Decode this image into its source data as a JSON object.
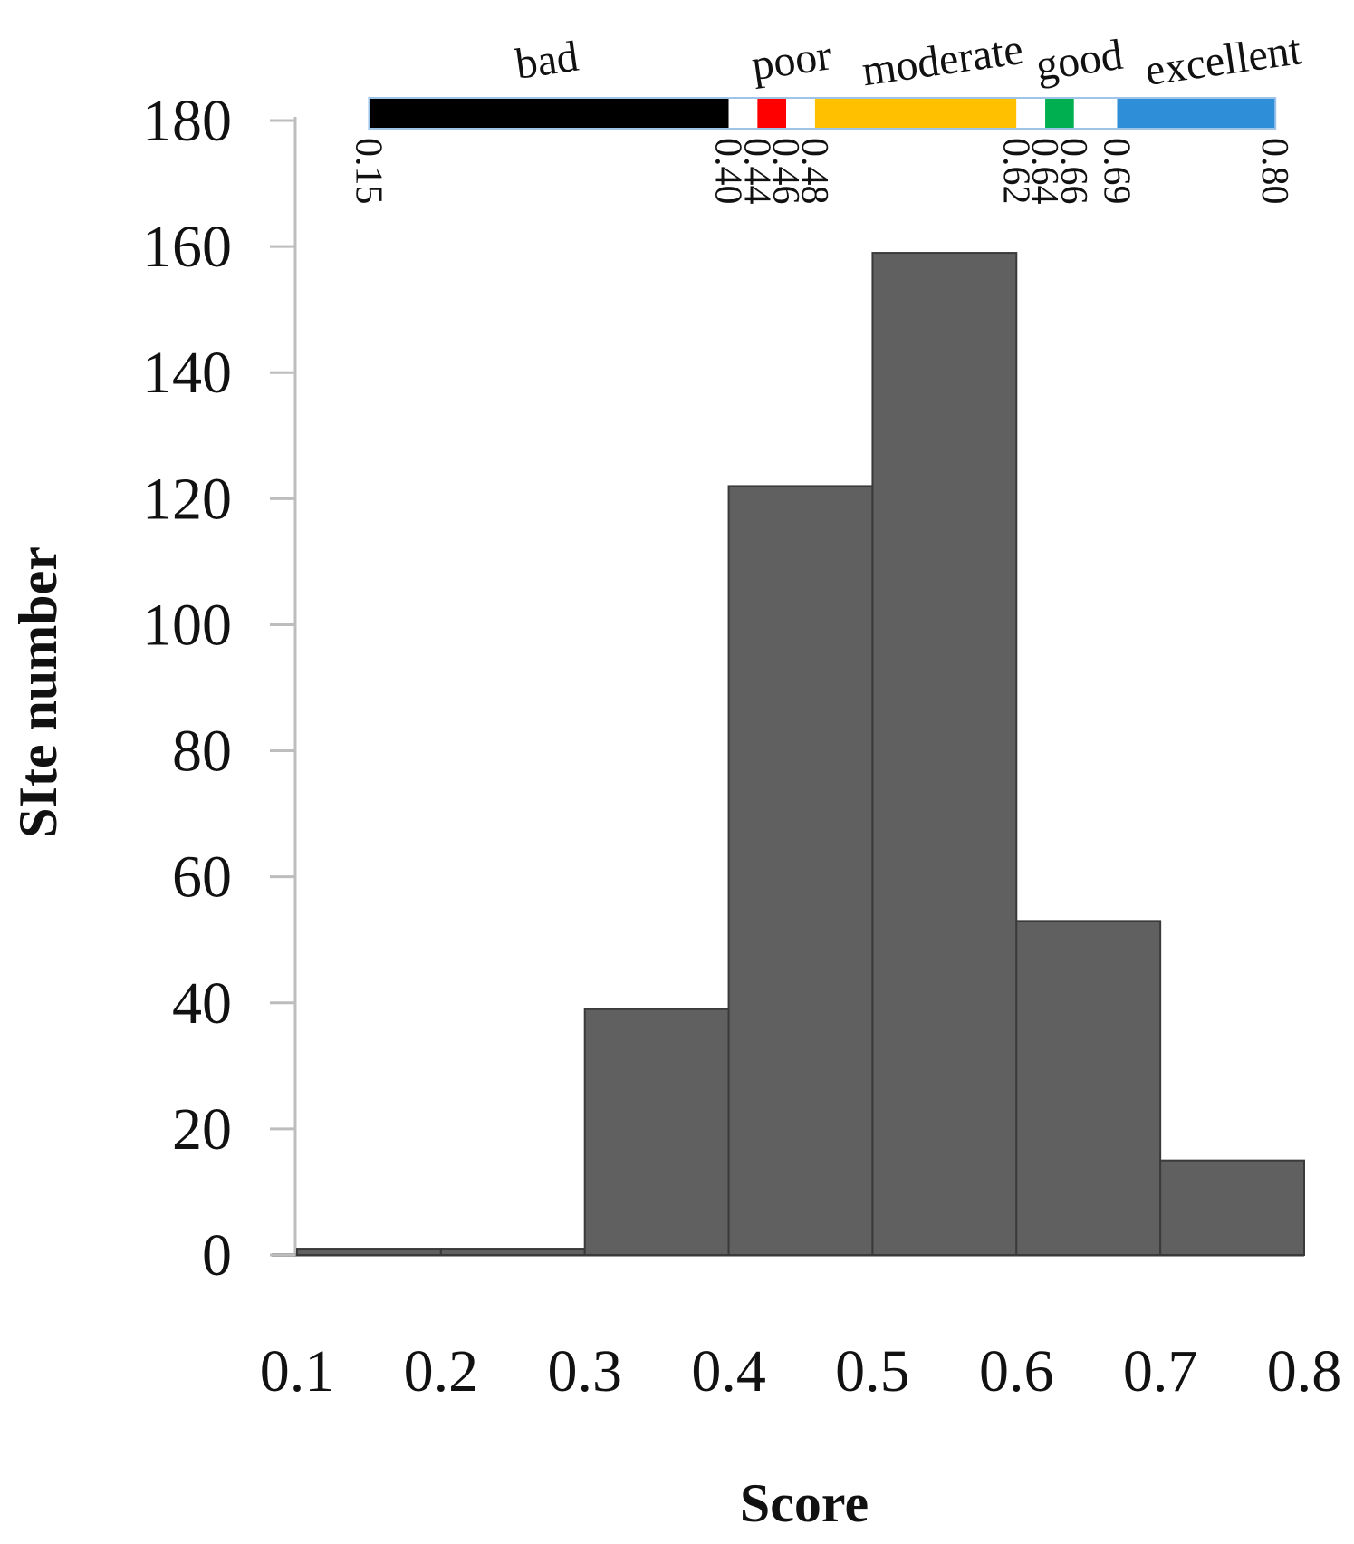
{
  "chart_data": {
    "type": "bar",
    "title": "",
    "xlabel": "Score",
    "ylabel": "SIte number",
    "x_ticks": [
      "0.1",
      "0.2",
      "0.3",
      "0.4",
      "0.5",
      "0.6",
      "0.7",
      "0.8"
    ],
    "y_ticks": [
      "0",
      "20",
      "40",
      "60",
      "80",
      "100",
      "120",
      "140",
      "160",
      "180"
    ],
    "xlim": [
      0.1,
      0.8
    ],
    "ylim": [
      0,
      180
    ],
    "grid": false,
    "legend": "none",
    "bar_color": "#606060",
    "bins": [
      {
        "start": 0.1,
        "end": 0.2,
        "value": 1
      },
      {
        "start": 0.2,
        "end": 0.3,
        "value": 1
      },
      {
        "start": 0.3,
        "end": 0.4,
        "value": 39
      },
      {
        "start": 0.4,
        "end": 0.5,
        "value": 122
      },
      {
        "start": 0.5,
        "end": 0.6,
        "value": 159
      },
      {
        "start": 0.6,
        "end": 0.7,
        "value": 53
      },
      {
        "start": 0.7,
        "end": 0.8,
        "value": 15
      }
    ],
    "quality_scale": {
      "labels": [
        {
          "text": "bad",
          "at": 0.275
        },
        {
          "text": "poor",
          "at": 0.445
        },
        {
          "text": "moderate",
          "at": 0.55
        },
        {
          "text": "good",
          "at": 0.645
        },
        {
          "text": "excellent",
          "at": 0.745
        }
      ],
      "segments": [
        {
          "start": 0.15,
          "end": 0.4,
          "color": "#000000"
        },
        {
          "start": 0.4,
          "end": 0.42,
          "color": "#ffffff"
        },
        {
          "start": 0.42,
          "end": 0.44,
          "color": "#ff0000"
        },
        {
          "start": 0.44,
          "end": 0.46,
          "color": "#ffffff"
        },
        {
          "start": 0.46,
          "end": 0.6,
          "color": "#ffc000"
        },
        {
          "start": 0.6,
          "end": 0.62,
          "color": "#ffffff"
        },
        {
          "start": 0.62,
          "end": 0.64,
          "color": "#00b050"
        },
        {
          "start": 0.64,
          "end": 0.67,
          "color": "#ffffff"
        },
        {
          "start": 0.67,
          "end": 0.78,
          "color": "#2e8fd8"
        }
      ],
      "ticks": [
        {
          "label": "0.15",
          "at": 0.15
        },
        {
          "label": "0.40",
          "at": 0.4
        },
        {
          "label": "0.44",
          "at": 0.42
        },
        {
          "label": "0.46",
          "at": 0.44
        },
        {
          "label": "0.48",
          "at": 0.46
        },
        {
          "label": "0.62",
          "at": 0.6
        },
        {
          "label": "0.64",
          "at": 0.62
        },
        {
          "label": "0.66",
          "at": 0.64
        },
        {
          "label": "0.69",
          "at": 0.67
        },
        {
          "label": "0.80",
          "at": 0.78
        }
      ]
    }
  }
}
